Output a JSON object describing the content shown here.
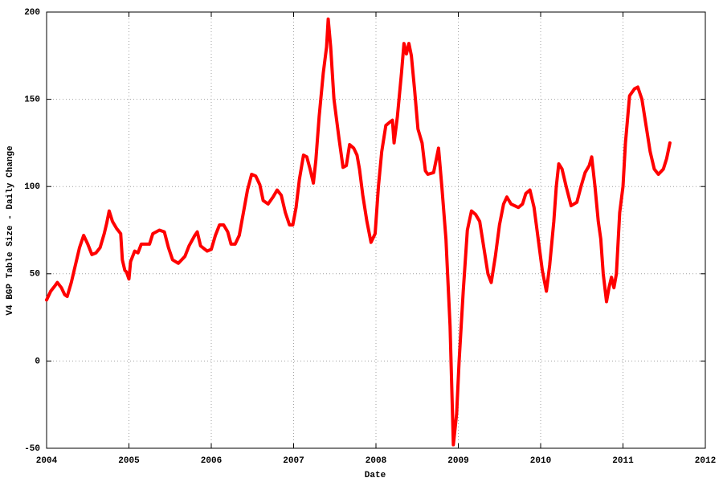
{
  "chart_data": {
    "type": "line",
    "xlabel": "Date",
    "ylabel": "V4 BGP Table Size - Daily Change",
    "color": "#ff0000",
    "grid": true,
    "xlim": [
      2004,
      2012
    ],
    "xticks": [
      2004,
      2005,
      2006,
      2007,
      2008,
      2009,
      2010,
      2011,
      2012
    ],
    "ylim": [
      -50,
      200
    ],
    "yticks": [
      -50,
      0,
      50,
      100,
      150,
      200
    ],
    "x": [
      2004.0,
      2004.05,
      2004.1,
      2004.13,
      2004.18,
      2004.22,
      2004.25,
      2004.3,
      2004.35,
      2004.4,
      2004.45,
      2004.5,
      2004.55,
      2004.6,
      2004.65,
      2004.7,
      2004.73,
      2004.76,
      2004.8,
      2004.85,
      2004.9,
      2004.92,
      2004.95,
      2004.97,
      2005.0,
      2005.02,
      2005.07,
      2005.11,
      2005.15,
      2005.25,
      2005.29,
      2005.37,
      2005.43,
      2005.48,
      2005.53,
      2005.6,
      2005.68,
      2005.73,
      2005.8,
      2005.83,
      2005.87,
      2005.95,
      2006.0,
      2006.05,
      2006.1,
      2006.15,
      2006.2,
      2006.24,
      2006.29,
      2006.34,
      2006.39,
      2006.44,
      2006.49,
      2006.54,
      2006.59,
      2006.63,
      2006.69,
      2006.75,
      2006.8,
      2006.85,
      2006.9,
      2006.95,
      2006.99,
      2007.03,
      2007.07,
      2007.12,
      2007.16,
      2007.2,
      2007.24,
      2007.27,
      2007.31,
      2007.36,
      2007.4,
      2007.42,
      2007.45,
      2007.49,
      2007.55,
      2007.6,
      2007.64,
      2007.68,
      2007.73,
      2007.77,
      2007.8,
      2007.84,
      2007.89,
      2007.94,
      2007.99,
      2008.03,
      2008.07,
      2008.12,
      2008.17,
      2008.2,
      2008.22,
      2008.26,
      2008.31,
      2008.34,
      2008.37,
      2008.4,
      2008.43,
      2008.47,
      2008.51,
      2008.56,
      2008.6,
      2008.63,
      2008.7,
      2008.76,
      2008.8,
      2008.85,
      2008.9,
      2008.94,
      2008.98,
      2009.01,
      2009.06,
      2009.11,
      2009.16,
      2009.21,
      2009.26,
      2009.31,
      2009.36,
      2009.4,
      2009.45,
      2009.5,
      2009.55,
      2009.59,
      2009.64,
      2009.73,
      2009.78,
      2009.82,
      2009.87,
      2009.92,
      2009.97,
      2010.02,
      2010.07,
      2010.11,
      2010.16,
      2010.19,
      2010.22,
      2010.26,
      2010.31,
      2010.37,
      2010.44,
      2010.49,
      2010.54,
      2010.59,
      2010.62,
      2010.66,
      2010.7,
      2010.73,
      2010.76,
      2010.8,
      2010.83,
      2010.86,
      2010.89,
      2010.92,
      2010.96,
      2011.0,
      2011.03,
      2011.08,
      2011.14,
      2011.18,
      2011.23,
      2011.28,
      2011.33,
      2011.38,
      2011.43,
      2011.49,
      2011.53,
      2011.57
    ],
    "values": [
      35,
      40,
      43,
      45,
      42,
      38,
      37,
      45,
      55,
      65,
      72,
      67,
      61,
      62,
      65,
      73,
      79,
      86,
      80,
      76,
      73,
      58,
      52,
      51,
      47,
      57,
      63,
      62,
      67,
      67,
      73,
      75,
      74,
      65,
      58,
      56,
      60,
      66,
      72,
      74,
      66,
      63,
      64,
      72,
      78,
      78,
      74,
      67,
      67,
      72,
      85,
      98,
      107,
      106,
      101,
      92,
      90,
      94,
      98,
      95,
      85,
      78,
      78,
      88,
      104,
      118,
      117,
      110,
      102,
      115,
      140,
      165,
      180,
      196,
      180,
      150,
      128,
      111,
      112,
      124,
      122,
      118,
      110,
      95,
      80,
      68,
      73,
      100,
      120,
      135,
      137,
      138,
      125,
      140,
      165,
      182,
      176,
      182,
      175,
      155,
      133,
      125,
      109,
      107,
      108,
      122,
      100,
      70,
      20,
      -48,
      -30,
      0,
      40,
      75,
      86,
      84,
      80,
      65,
      50,
      45,
      60,
      78,
      90,
      94,
      90,
      88,
      90,
      96,
      98,
      88,
      70,
      52,
      40,
      55,
      80,
      100,
      113,
      110,
      100,
      89,
      91,
      100,
      108,
      112,
      117,
      100,
      80,
      70,
      50,
      34,
      42,
      48,
      42,
      50,
      85,
      100,
      125,
      152,
      156,
      157,
      150,
      135,
      120,
      110,
      107,
      110,
      116,
      125
    ]
  }
}
